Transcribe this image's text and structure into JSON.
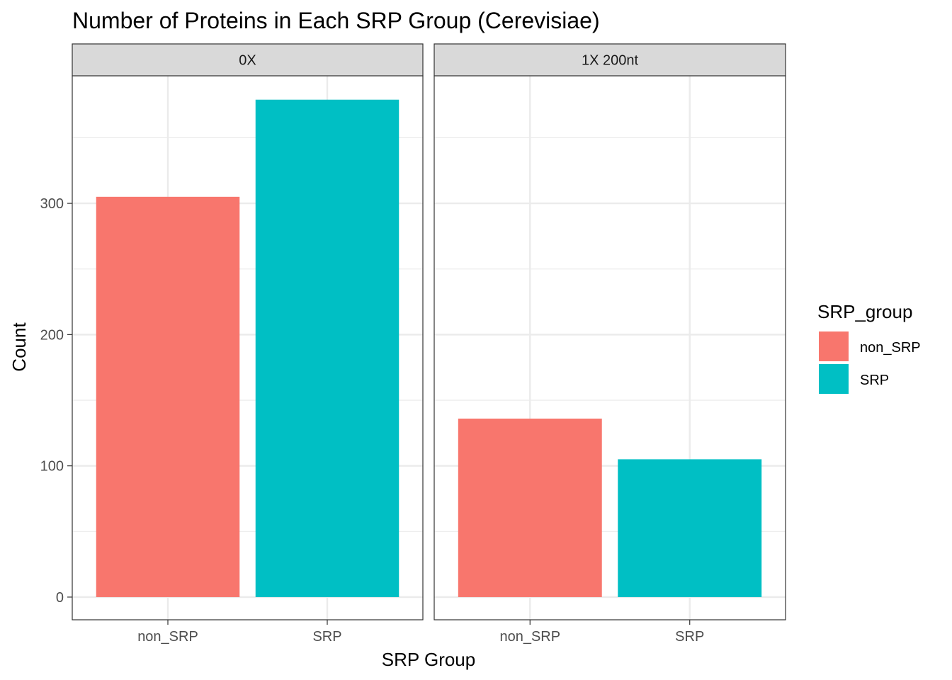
{
  "chart_data": {
    "type": "bar",
    "title": "Number of Proteins in Each SRP Group (Cerevisiae)",
    "xlabel": "SRP Group",
    "ylabel": "Count",
    "categories": [
      "non_SRP",
      "SRP"
    ],
    "y_ticks": [
      0,
      100,
      200,
      300
    ],
    "ylim": [
      0,
      380
    ],
    "grid": true,
    "facets": [
      {
        "label": "0X",
        "values": [
          305,
          379
        ]
      },
      {
        "label": "1X 200nt",
        "values": [
          136,
          105
        ]
      }
    ],
    "legend": {
      "title": "SRP_group",
      "placement": "right",
      "items": [
        {
          "label": "non_SRP",
          "color": "#F8766D"
        },
        {
          "label": "SRP",
          "color": "#00BFC4"
        }
      ]
    },
    "colors": {
      "non_SRP": "#F8766D",
      "SRP": "#00BFC4"
    }
  }
}
